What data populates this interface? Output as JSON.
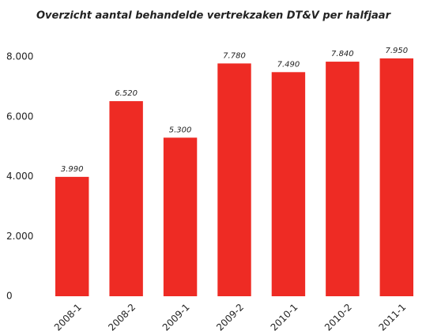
{
  "chart_data": {
    "type": "bar",
    "title": "Overzicht aantal behandelde vertrekzaken DT&V per halfjaar",
    "categories": [
      "2008-1",
      "2008-2",
      "2009-1",
      "2009-2",
      "2010-1",
      "2010-2",
      "2011-1"
    ],
    "values": [
      3990,
      6520,
      5300,
      7780,
      7490,
      7840,
      7950
    ],
    "value_labels": [
      "3.990",
      "6.520",
      "5.300",
      "7.780",
      "7.490",
      "7.840",
      "7.950"
    ],
    "color": "#ee2b24",
    "ylim": [
      0,
      8000
    ],
    "yticks": [
      0,
      {
        "value": 2000,
        "label": "2.000"
      },
      {
        "value": 4000,
        "label": "4.000"
      },
      {
        "value": 6000,
        "label": "6.000"
      },
      {
        "value": 8000,
        "label": "8.000"
      }
    ],
    "grid": false
  }
}
